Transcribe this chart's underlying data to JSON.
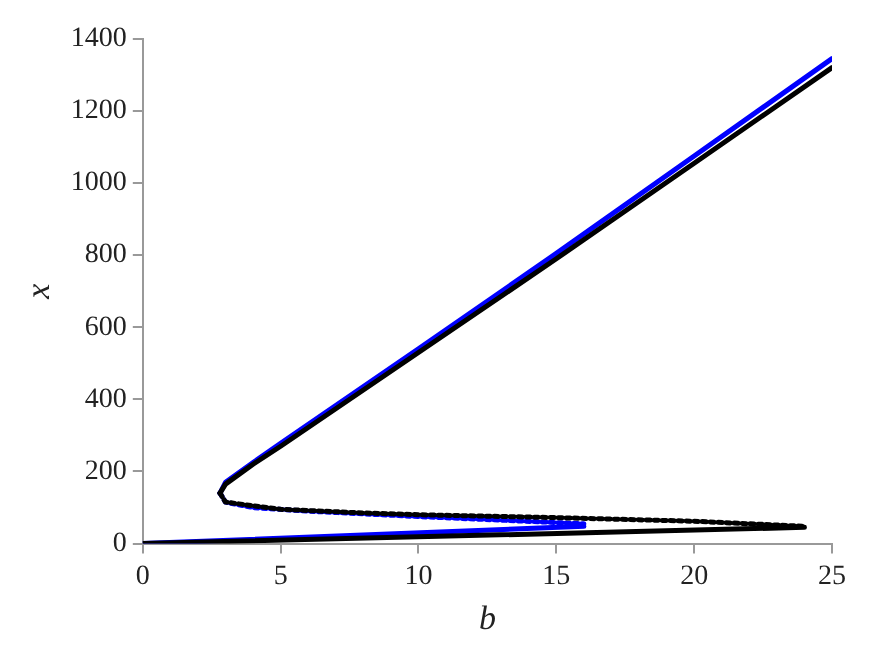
{
  "chart_data": {
    "type": "line",
    "xlabel": "b",
    "ylabel": "x",
    "xlim": [
      0,
      25
    ],
    "xticks": [
      0,
      5,
      10,
      15,
      20,
      25
    ],
    "ylim": [
      0,
      1400
    ],
    "yticks": [
      0,
      200,
      400,
      600,
      800,
      1000,
      1200,
      1400
    ],
    "grid": false,
    "legend": false,
    "marker": "none",
    "series": [
      {
        "color": "#000000",
        "line_style": "solid",
        "x": [
          2.8,
          3,
          4,
          5,
          10,
          15,
          20,
          25
        ],
        "values": [
          140,
          165,
          220,
          270,
          530,
          790,
          1055,
          1320
        ]
      },
      {
        "color": "#000000",
        "line_style": "dotted",
        "x": [
          2.8,
          3,
          4,
          5,
          8,
          10,
          15,
          20,
          24
        ],
        "values": [
          140,
          115,
          105,
          95,
          85,
          80,
          72,
          62,
          48
        ]
      },
      {
        "color": "#000000",
        "line_style": "solid",
        "x": [
          0,
          24
        ],
        "values": [
          0,
          45
        ]
      },
      {
        "color": "#0000ff",
        "line_style": "solid",
        "x": [
          2.8,
          3,
          4,
          5,
          10,
          15,
          20,
          25
        ],
        "values": [
          140,
          170,
          225,
          278,
          540,
          805,
          1075,
          1345
        ]
      },
      {
        "color": "#0000ff",
        "line_style": "dotted",
        "x": [
          2.8,
          3,
          4,
          6,
          10,
          16
        ],
        "values": [
          140,
          115,
          100,
          90,
          75,
          55
        ]
      },
      {
        "color": "#0000ff",
        "line_style": "solid",
        "x": [
          0,
          16
        ],
        "values": [
          0,
          48
        ]
      }
    ]
  }
}
